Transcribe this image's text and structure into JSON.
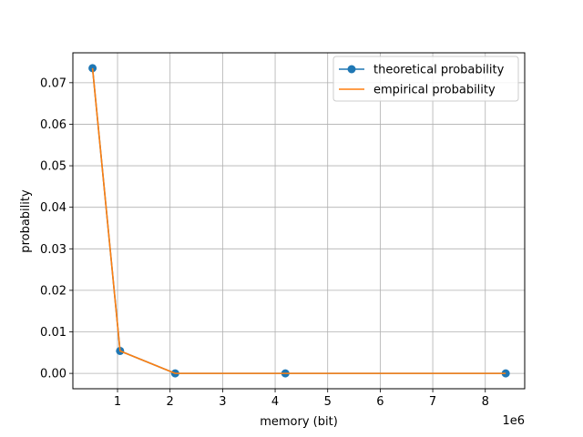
{
  "chart_data": {
    "type": "line",
    "xlabel": "memory (bit)",
    "ylabel": "probability",
    "x_offset_label": "1e6",
    "xlim": [
      0.15,
      8.75
    ],
    "ylim": [
      -0.0037,
      0.0772
    ],
    "x_ticks": [
      1,
      2,
      3,
      4,
      5,
      6,
      7,
      8
    ],
    "y_ticks": [
      0.0,
      0.01,
      0.02,
      0.03,
      0.04,
      0.05,
      0.06,
      0.07
    ],
    "y_tick_labels": [
      "0.00",
      "0.01",
      "0.02",
      "0.03",
      "0.04",
      "0.05",
      "0.06",
      "0.07"
    ],
    "grid": true,
    "legend_position": "top-right",
    "x": [
      0.524288,
      1.048576,
      2.097152,
      4.194304,
      8.388608
    ],
    "series": [
      {
        "name": "theoretical probability",
        "color": "#1f77b4",
        "marker": "circle",
        "values": [
          0.0735,
          0.0054,
          0.0,
          0.0,
          0.0
        ]
      },
      {
        "name": "empirical probability",
        "color": "#ff7f0e",
        "marker": "none",
        "values": [
          0.0735,
          0.0054,
          0.0,
          0.0,
          0.0
        ]
      }
    ]
  }
}
